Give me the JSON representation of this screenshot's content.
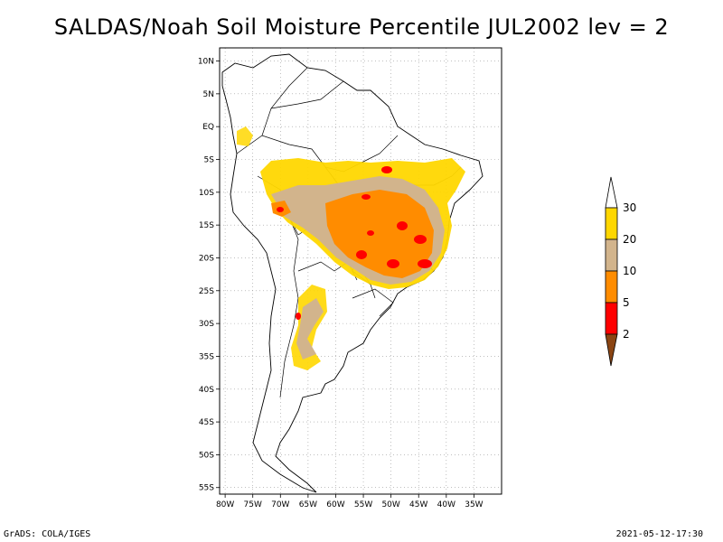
{
  "title": "SALDAS/Noah Soil Moisture Percentile JUL2002 lev = 2",
  "footer": {
    "left": "GrADS: COLA/IGES",
    "right": "2021-05-12-17:30"
  },
  "map": {
    "lon_range": [
      -81,
      -30
    ],
    "lat_range": [
      -56,
      12
    ],
    "x_ticks": [
      {
        "lon": -80,
        "label": "80W"
      },
      {
        "lon": -75,
        "label": "75W"
      },
      {
        "lon": -70,
        "label": "70W"
      },
      {
        "lon": -65,
        "label": "65W"
      },
      {
        "lon": -60,
        "label": "60W"
      },
      {
        "lon": -55,
        "label": "55W"
      },
      {
        "lon": -50,
        "label": "50W"
      },
      {
        "lon": -45,
        "label": "45W"
      },
      {
        "lon": -40,
        "label": "40W"
      },
      {
        "lon": -35,
        "label": "35W"
      }
    ],
    "y_ticks": [
      {
        "lat": 10,
        "label": "10N"
      },
      {
        "lat": 5,
        "label": "5N"
      },
      {
        "lat": 0,
        "label": "EQ"
      },
      {
        "lat": -5,
        "label": "5S"
      },
      {
        "lat": -10,
        "label": "10S"
      },
      {
        "lat": -15,
        "label": "15S"
      },
      {
        "lat": -20,
        "label": "20S"
      },
      {
        "lat": -25,
        "label": "25S"
      },
      {
        "lat": -30,
        "label": "30S"
      },
      {
        "lat": -35,
        "label": "35S"
      },
      {
        "lat": -40,
        "label": "40S"
      },
      {
        "lat": -45,
        "label": "45S"
      },
      {
        "lat": -50,
        "label": "50S"
      },
      {
        "lat": -55,
        "label": "55S"
      }
    ],
    "grid": true
  },
  "colorbar": {
    "levels": [
      "2",
      "5",
      "10",
      "20",
      "30"
    ],
    "colors": {
      "below_2": "#8b4513",
      "2_5": "#ff0000",
      "5_10": "#ff8c00",
      "10_20": "#d2b48c",
      "20_30": "#ffd700",
      "above_30": "#ffffff"
    }
  }
}
